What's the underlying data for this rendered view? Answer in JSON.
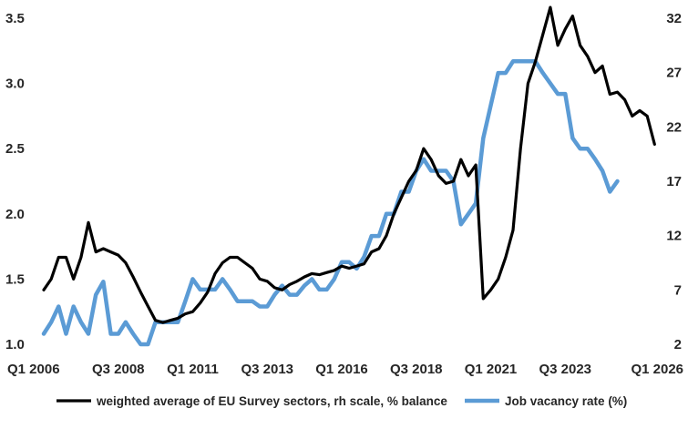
{
  "chart_data": {
    "type": "line",
    "x_start": "Q1 2006",
    "frequency": "quarterly",
    "x_tick_labels": [
      "Q1 2006",
      "Q3 2008",
      "Q1 2011",
      "Q3 2013",
      "Q1 2016",
      "Q3 2018",
      "Q1 2021",
      "Q3 2023",
      "Q1 2026"
    ],
    "y_left": {
      "ticks": [
        "1.0",
        "1.5",
        "2.0",
        "2.5",
        "3.0",
        "3.5"
      ],
      "range": [
        1.0,
        3.5
      ]
    },
    "y_right": {
      "ticks": [
        "2",
        "7",
        "12",
        "17",
        "22",
        "27",
        "32"
      ],
      "range": [
        2,
        32
      ]
    },
    "grid": false,
    "legend_position": "bottom",
    "series": [
      {
        "name": "weighted average of EU Survey sectors, rh scale, % balance",
        "axis": "right",
        "color": "#000000",
        "values": [
          7,
          8,
          10,
          10,
          8,
          10,
          13.2,
          10.5,
          10.8,
          10.5,
          10.2,
          9.5,
          8.2,
          6.8,
          5.5,
          4.2,
          4,
          4.2,
          4.4,
          4.8,
          5,
          5.8,
          6.8,
          8.5,
          9.5,
          10,
          10,
          9.5,
          9,
          8,
          7.8,
          7.2,
          7,
          7.5,
          7.8,
          8.2,
          8.5,
          8.4,
          8.6,
          8.8,
          9.2,
          9,
          9.2,
          9.4,
          10.5,
          10.8,
          12,
          14,
          15.5,
          17,
          18,
          20,
          19,
          17.5,
          16.8,
          17,
          19,
          17.5,
          18.5,
          6.2,
          7,
          8,
          10,
          12.5,
          20,
          26,
          28,
          30.5,
          33,
          29.5,
          31,
          32.2,
          29.5,
          28.5,
          27,
          27.6,
          25,
          25.2,
          24.5,
          23,
          23.5,
          23,
          20.4
        ]
      },
      {
        "name": "Job vacancy rate (%)",
        "axis": "left",
        "color": "#5B9BD5",
        "values": [
          1.08,
          1.17,
          1.29,
          1.08,
          1.29,
          1.17,
          1.08,
          1.38,
          1.48,
          1.08,
          1.08,
          1.17,
          1.08,
          1.0,
          1.0,
          1.17,
          1.17,
          1.17,
          1.17,
          1.33,
          1.5,
          1.42,
          1.42,
          1.42,
          1.5,
          1.42,
          1.33,
          1.33,
          1.33,
          1.29,
          1.29,
          1.38,
          1.45,
          1.38,
          1.38,
          1.45,
          1.5,
          1.42,
          1.42,
          1.5,
          1.63,
          1.63,
          1.58,
          1.67,
          1.83,
          1.83,
          2.0,
          2.0,
          2.17,
          2.17,
          2.33,
          2.42,
          2.33,
          2.33,
          2.33,
          2.25,
          1.92,
          2.0,
          2.08,
          2.58,
          2.83,
          3.08,
          3.08,
          3.17,
          3.17,
          3.17,
          3.17,
          3.08,
          3.0,
          2.92,
          2.92,
          2.58,
          2.5,
          2.5,
          2.42,
          2.33,
          2.17,
          2.25
        ]
      }
    ]
  }
}
